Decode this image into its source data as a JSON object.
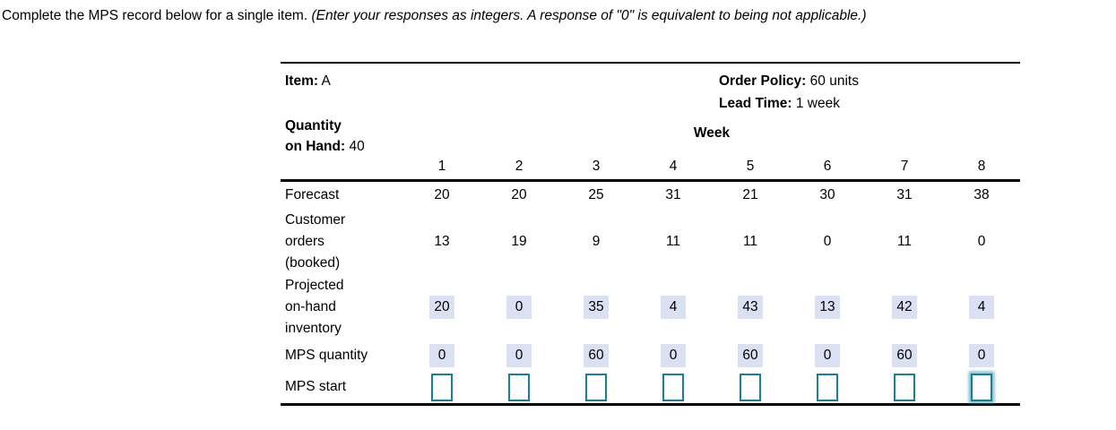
{
  "instruction": {
    "text_normal": "Complete the MPS record below for a single item. ",
    "text_italic": "(Enter your responses as integers. A response of \"0\" is equivalent to being not applicable.)"
  },
  "header": {
    "item_label": "Item:",
    "item_value": "A",
    "order_policy_label": "Order Policy:",
    "order_policy_value": "60 units",
    "lead_time_label": "Lead Time:",
    "lead_time_value": "1 week",
    "quantity_on_hand_line1": "Quantity",
    "quantity_on_hand_line2_label": "on Hand:",
    "quantity_on_hand_value": "40",
    "week_header": "Week",
    "week_numbers": [
      "1",
      "2",
      "3",
      "4",
      "5",
      "6",
      "7",
      "8"
    ]
  },
  "rows": {
    "forecast": {
      "label": "Forecast",
      "values": [
        "20",
        "20",
        "25",
        "31",
        "21",
        "30",
        "31",
        "38"
      ]
    },
    "customer_orders": {
      "label_lines": [
        "Customer",
        "orders",
        "(booked)"
      ],
      "values": [
        "13",
        "19",
        "9",
        "11",
        "11",
        "0",
        "11",
        "0"
      ]
    },
    "projected_on_hand": {
      "label_lines": [
        "Projected",
        "on-hand",
        "inventory"
      ],
      "values": [
        "20",
        "0",
        "35",
        "4",
        "43",
        "13",
        "42",
        "4"
      ]
    },
    "mps_quantity": {
      "label": "MPS quantity",
      "values": [
        "0",
        "0",
        "60",
        "0",
        "60",
        "0",
        "60",
        "0"
      ]
    },
    "mps_start": {
      "label": "MPS start",
      "values": [
        "",
        "",
        "",
        "",
        "",
        "",
        "",
        ""
      ]
    }
  },
  "colors": {
    "answer_highlight": "#d9e1f2",
    "input_border_teal": "#1b7e99",
    "rule_black": "#000000"
  }
}
